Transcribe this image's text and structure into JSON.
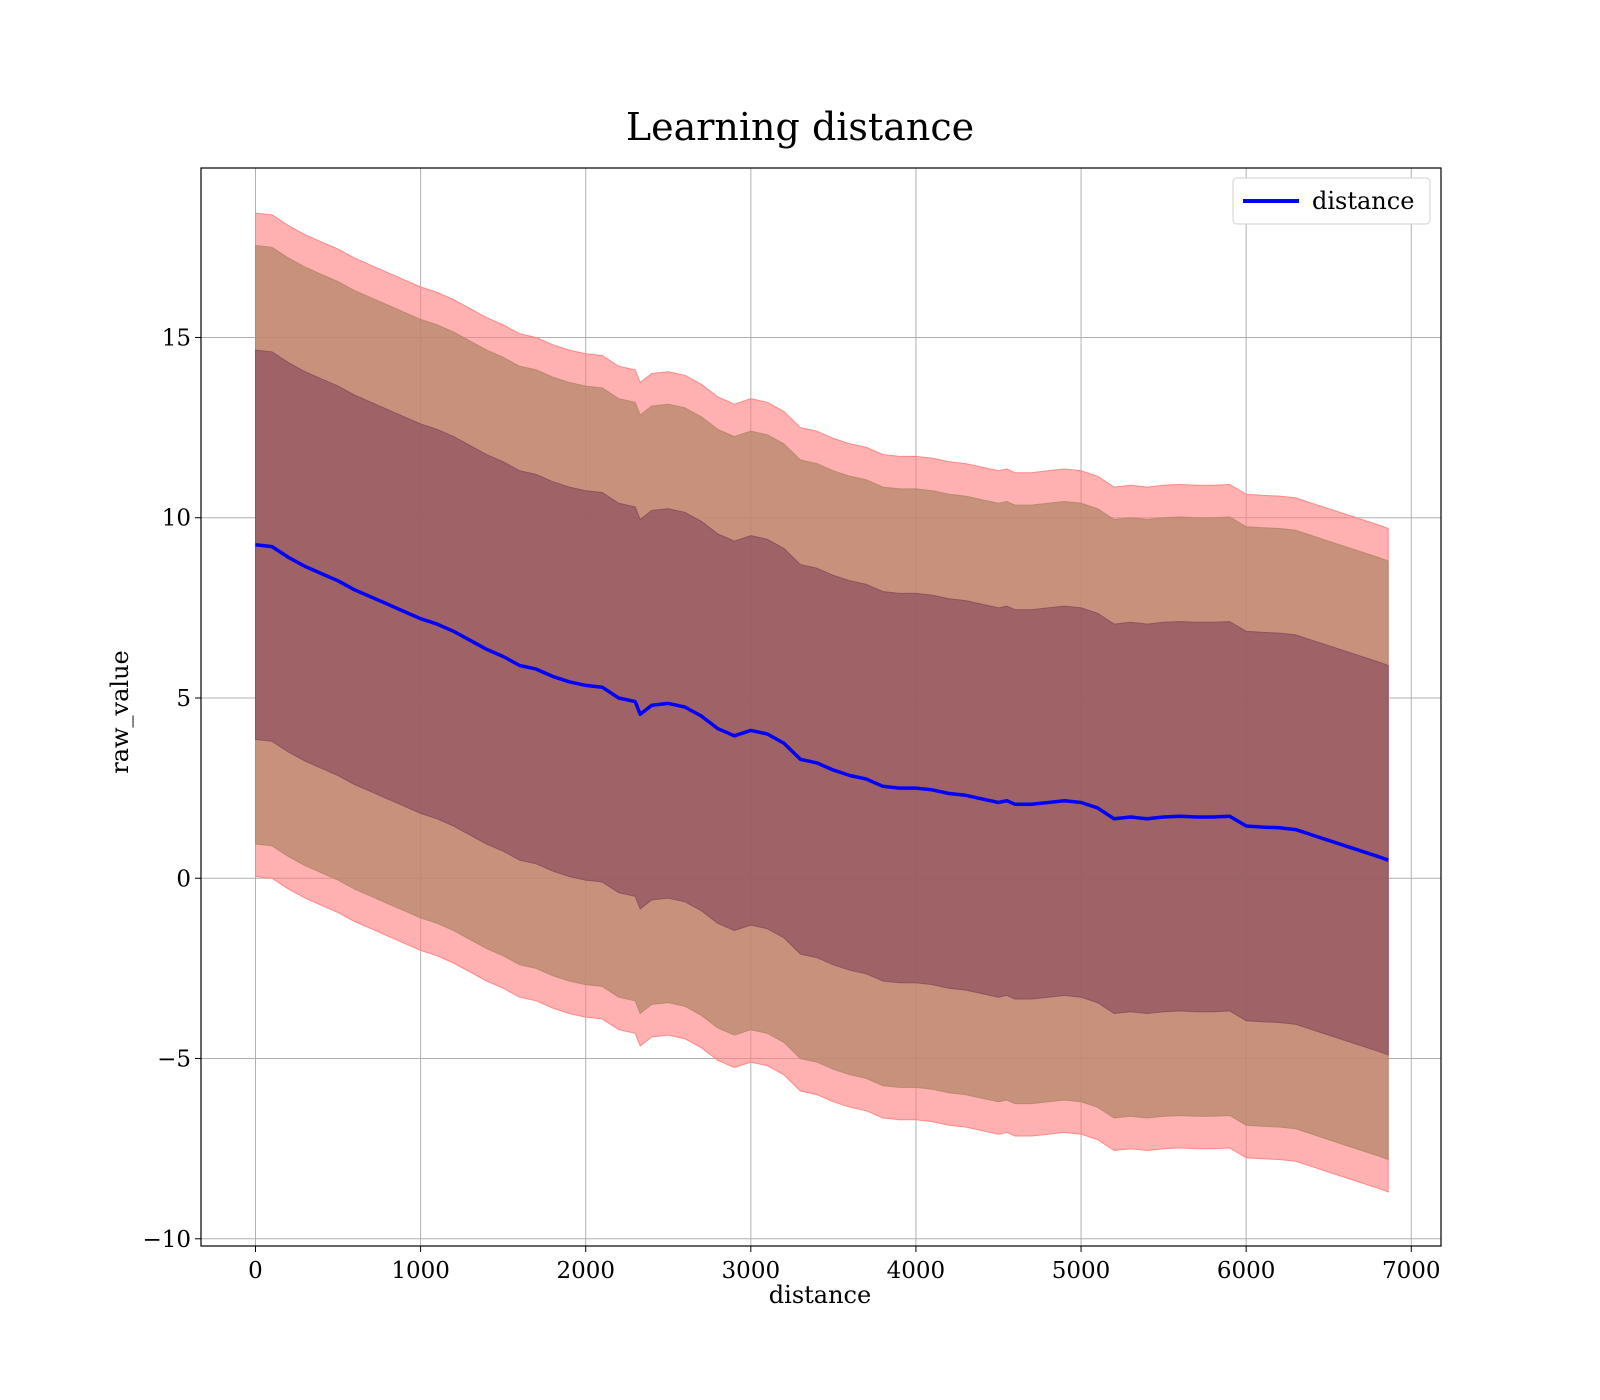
{
  "chart_data": {
    "type": "line",
    "title": "Learning distance",
    "xlabel": "distance",
    "ylabel": "raw_value",
    "xlim": [
      -330,
      7180
    ],
    "ylim": [
      -10.2,
      19.7
    ],
    "x_ticks": [
      0,
      1000,
      2000,
      3000,
      4000,
      5000,
      6000,
      7000
    ],
    "x_tick_labels": [
      "0",
      "1000",
      "2000",
      "3000",
      "4000",
      "5000",
      "6000",
      "7000"
    ],
    "y_ticks": [
      -10,
      -5,
      0,
      5,
      10,
      15
    ],
    "y_tick_labels": [
      "−10",
      "−5",
      "0",
      "5",
      "10",
      "15"
    ],
    "grid": true,
    "legend": {
      "position": "top-right",
      "entries": [
        "distance"
      ]
    },
    "colors": {
      "line": "#0000ff",
      "band_outer": "#ff7f7f",
      "band_middle": "#b5876a",
      "band_inner": "#8b4f5f",
      "axes": "#000000",
      "grid": "#b0b0b0"
    },
    "series": [
      {
        "name": "distance",
        "x": [
          0,
          100,
          200,
          300,
          400,
          500,
          600,
          700,
          800,
          900,
          1000,
          1100,
          1200,
          1300,
          1400,
          1500,
          1600,
          1700,
          1800,
          1900,
          2000,
          2100,
          2200,
          2300,
          2330,
          2400,
          2500,
          2600,
          2700,
          2800,
          2850,
          2900,
          3000,
          3100,
          3200,
          3300,
          3400,
          3500,
          3600,
          3700,
          3800,
          3900,
          4000,
          4100,
          4200,
          4300,
          4400,
          4500,
          4550,
          4600,
          4700,
          4800,
          4900,
          5000,
          5100,
          5200,
          5300,
          5400,
          5500,
          5600,
          5700,
          5800,
          5900,
          6000,
          6100,
          6200,
          6300,
          6400,
          6500,
          6600,
          6700,
          6800,
          6860
        ],
        "y": [
          9.25,
          9.2,
          8.9,
          8.65,
          8.45,
          8.25,
          8.0,
          7.8,
          7.6,
          7.4,
          7.2,
          7.05,
          6.85,
          6.6,
          6.35,
          6.15,
          5.9,
          5.8,
          5.6,
          5.45,
          5.35,
          5.3,
          5.0,
          4.9,
          4.55,
          4.8,
          4.85,
          4.75,
          4.5,
          4.15,
          4.05,
          3.95,
          4.1,
          4.0,
          3.75,
          3.3,
          3.2,
          3.0,
          2.85,
          2.75,
          2.55,
          2.5,
          2.5,
          2.45,
          2.35,
          2.3,
          2.2,
          2.1,
          2.15,
          2.05,
          2.05,
          2.1,
          2.15,
          2.1,
          1.95,
          1.65,
          1.7,
          1.65,
          1.7,
          1.72,
          1.7,
          1.7,
          1.72,
          1.45,
          1.42,
          1.4,
          1.35,
          1.2,
          1.05,
          0.9,
          0.75,
          0.6,
          0.5
        ]
      }
    ],
    "bands": [
      {
        "name": "outer",
        "offset": 9.2
      },
      {
        "name": "middle",
        "offset": 8.3
      },
      {
        "name": "inner",
        "offset": 5.4
      }
    ]
  }
}
